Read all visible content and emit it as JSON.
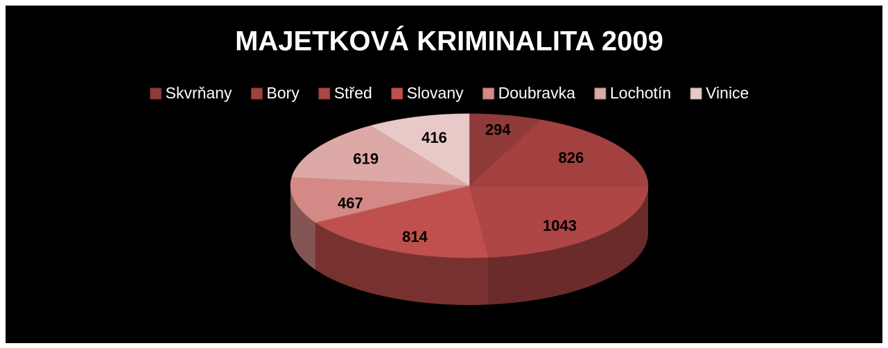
{
  "chart_data": {
    "type": "pie",
    "title": "MAJETKOVÁ KRIMINALITA 2009",
    "categories": [
      "Skvrňany",
      "Bory",
      "Střed",
      "Slovany",
      "Doubravka",
      "Lochotín",
      "Vinice"
    ],
    "values": [
      294,
      826,
      1043,
      814,
      467,
      619,
      416
    ],
    "colors": [
      "#8e3b3a",
      "#a2413f",
      "#ad4645",
      "#c0504d",
      "#d48986",
      "#dca9a7",
      "#e8c9c8"
    ],
    "legend": "top"
  }
}
